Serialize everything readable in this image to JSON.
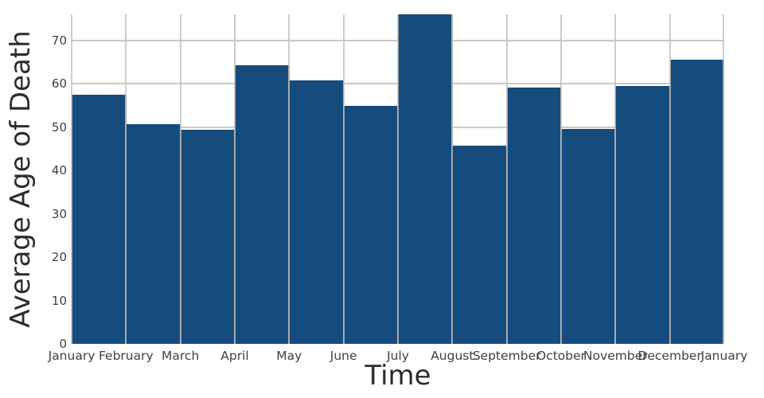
{
  "chart_data": {
    "type": "bar",
    "subtype": "histogram",
    "title": "",
    "xlabel": "Time",
    "ylabel": "Average Age of Death",
    "bin_edges": [
      "January",
      "February",
      "March",
      "April",
      "May",
      "June",
      "July",
      "August",
      "September",
      "October",
      "November",
      "December",
      "January"
    ],
    "categories": [
      "January-February",
      "February-March",
      "March-April",
      "April-May",
      "May-June",
      "June-July",
      "July-August",
      "August-September",
      "September-October",
      "October-November",
      "November-December",
      "December-January"
    ],
    "values": [
      57.4,
      50.6,
      49.4,
      64.2,
      60.7,
      54.8,
      76.0,
      45.7,
      59.2,
      49.5,
      59.4,
      65.5
    ],
    "y_ticks": [
      0,
      10,
      20,
      30,
      40,
      50,
      60,
      70
    ],
    "ylim": [
      0,
      76
    ],
    "grid": true,
    "legend_position": "none",
    "bar_color": "#164b7d"
  },
  "colors": {
    "bar": "#164b7d",
    "gridline": "#ccc9c3",
    "tick_text": "#3f3f3f",
    "axis_title_text": "#2c2c2c",
    "background": "#ffffff"
  }
}
